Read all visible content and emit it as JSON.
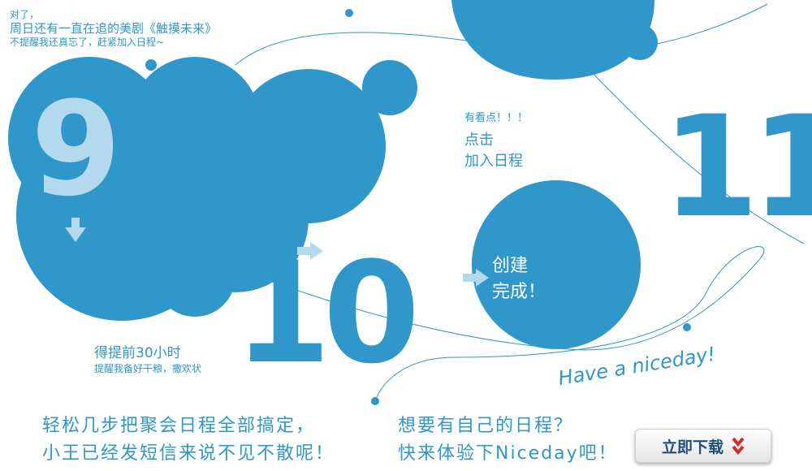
{
  "intro": {
    "line1": "对了，",
    "line2": "周日还有一直在追的美剧《触摸未来》",
    "line3": "不提醒我还真忘了，赶紧加入日程~"
  },
  "steps": {
    "nine": "9",
    "ten": "10",
    "eleven": "11"
  },
  "hint": {
    "top": "有看点！！！",
    "click_line1": "点击",
    "click_line2": "加入日程"
  },
  "done": {
    "line1": "创建",
    "line2": "完成！"
  },
  "reminder": {
    "line1": "得提前30小时",
    "line2": "提醒我备好干粮，撒欢状"
  },
  "tagline": "Have a niceday!",
  "bottom_left": {
    "line1": "轻松几步把聚会日程全部搞定，",
    "line2": "小王已经发短信来说不见不散呢！"
  },
  "bottom_mid": {
    "line1": "想要有自己的日程？",
    "line2": "快来体验下Niceday吧！"
  },
  "download": {
    "label": "立即下载"
  },
  "colors": {
    "primary_blue": "#2f97c9",
    "light_blue": "#b5d9ec",
    "button_red": "#d6282d"
  },
  "icons": [
    "arrow-down-icon",
    "arrow-right-icon",
    "chevron-down-double-icon"
  ]
}
